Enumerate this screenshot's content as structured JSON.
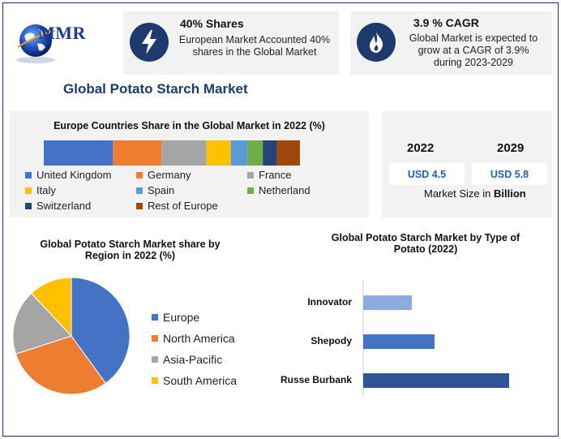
{
  "logo": {
    "text": "MMR"
  },
  "stats": [
    {
      "title": "40% Shares",
      "desc_lines": [
        "European Market Accounted 40%",
        "shares in the Global Market"
      ],
      "icon": "lightning-bolt-icon"
    },
    {
      "title": "3.9 % CAGR",
      "desc_lines": [
        "Global Market is expected to",
        "grow at a CAGR of 3.9%",
        "during 2023-2029"
      ],
      "icon": "flame-icon"
    }
  ],
  "title": "Global Potato Starch Market",
  "market_size": {
    "years": [
      "2022",
      "2029"
    ],
    "values": [
      "USD 4.5",
      "USD 5.8"
    ],
    "label_prefix": "Market Size in ",
    "label_unit": "Billion"
  },
  "colors": {
    "accent_dark": "#1f3a6f",
    "blue": "#4472c4",
    "orange": "#ed7d31",
    "gray": "#a5a5a5",
    "yellow": "#ffc000",
    "light_blue": "#5b9bd5",
    "green": "#70ad47",
    "navy": "#264478",
    "brown": "#9e480e"
  },
  "chart_data": [
    {
      "type": "bar",
      "orientation": "horizontal-stacked",
      "title": "Europe Countries Share in the Global Market in 2022 (%)",
      "series": [
        {
          "name": "United Kingdom",
          "value": 27,
          "color": "#4472c4"
        },
        {
          "name": "Germany",
          "value": 19,
          "color": "#ed7d31"
        },
        {
          "name": "France",
          "value": 17.5,
          "color": "#a5a5a5"
        },
        {
          "name": "Italy",
          "value": 9.5,
          "color": "#ffc000"
        },
        {
          "name": "Spain",
          "value": 6.5,
          "color": "#5b9bd5"
        },
        {
          "name": "Netherland",
          "value": 6,
          "color": "#70ad47"
        },
        {
          "name": "Switzerland",
          "value": 5.5,
          "color": "#264478"
        },
        {
          "name": "Rest of Europe",
          "value": 9,
          "color": "#9e480e"
        }
      ]
    },
    {
      "type": "pie",
      "title_lines": [
        "Global Potato Starch Market share by",
        "Region in 2022 (%)"
      ],
      "categories": [
        "Europe",
        "North America",
        "Asia-Pacific",
        "South America"
      ],
      "values": [
        40,
        30,
        18,
        12
      ],
      "colors": [
        "#4472c4",
        "#ed7d31",
        "#a5a5a5",
        "#ffc000"
      ],
      "legend_position": "right"
    },
    {
      "type": "bar",
      "orientation": "horizontal",
      "title_lines": [
        "Global Potato Starch Market by Type of",
        "Potato (2022)"
      ],
      "categories": [
        "Innovator",
        "Shepody",
        "Russe Burbank"
      ],
      "values": [
        1.5,
        2.2,
        4.5
      ],
      "colors": [
        "#8faadc",
        "#4472c4",
        "#2f5597"
      ],
      "xlim": [
        0,
        5
      ]
    }
  ]
}
